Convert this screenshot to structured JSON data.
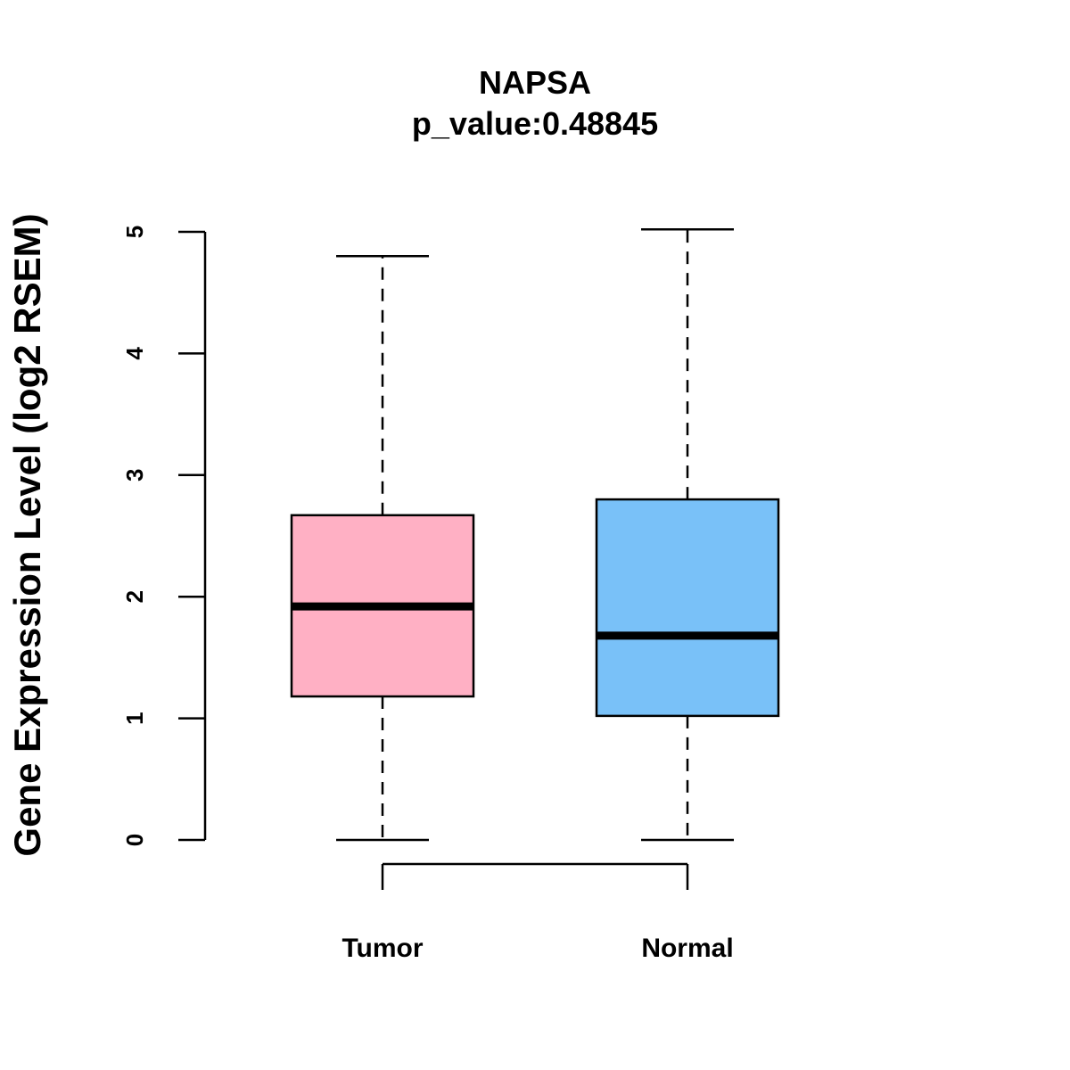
{
  "chart_data": {
    "type": "box",
    "title": "NAPSA",
    "subtitle": "p_value:0.48845",
    "xlabel": "",
    "ylabel": "Gene Expression Level (log2 RSEM)",
    "ylim": [
      0,
      5
    ],
    "yticks": [
      0,
      1,
      2,
      3,
      4,
      5
    ],
    "categories": [
      "Tumor",
      "Normal"
    ],
    "boxes": [
      {
        "name": "Tumor",
        "min": 0.0,
        "q1": 1.18,
        "median": 1.92,
        "q3": 2.67,
        "max": 4.8,
        "color": "#FFB0C4"
      },
      {
        "name": "Normal",
        "min": 0.0,
        "q1": 1.02,
        "median": 1.68,
        "q3": 2.8,
        "max": 5.02,
        "color": "#79C1F8"
      }
    ],
    "grid": false,
    "legend": "none"
  }
}
